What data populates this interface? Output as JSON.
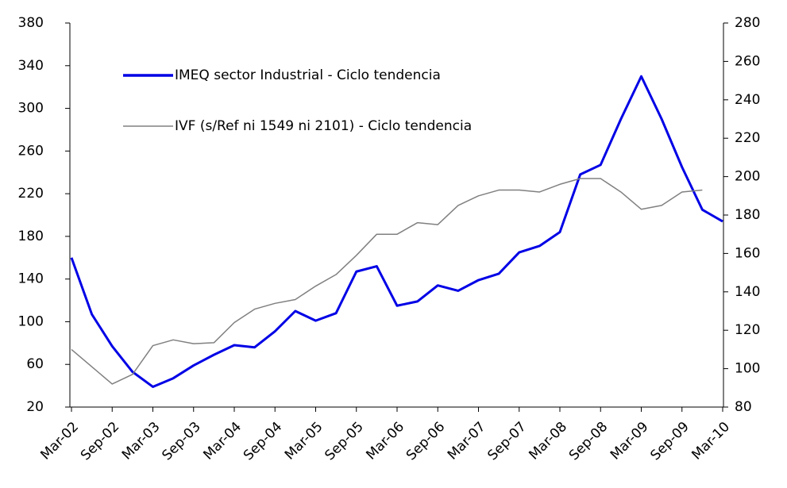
{
  "chart_data": {
    "type": "line",
    "categories": [
      "Mar-02",
      null,
      "Sep-02",
      null,
      "Mar-03",
      null,
      "Sep-03",
      null,
      "Mar-04",
      null,
      "Sep-04",
      null,
      "Mar-05",
      null,
      "Sep-05",
      null,
      "Mar-06",
      null,
      "Sep-06",
      null,
      "Mar-07",
      null,
      "Sep-07",
      null,
      "Mar-08",
      null,
      "Sep-08",
      null,
      "Mar-09",
      null,
      "Sep-09",
      null,
      "Mar-10"
    ],
    "series": [
      {
        "name": "IMEQ sector Industrial - Ciclo tendencia",
        "color": "#0000e6",
        "axis": "y",
        "values": [
          160,
          107,
          77,
          53,
          39,
          47,
          59,
          69,
          78,
          76,
          91,
          110,
          101,
          108,
          147,
          152,
          115,
          119,
          134,
          129,
          139,
          145,
          165,
          171,
          184,
          238,
          247,
          290,
          330,
          290,
          245,
          205,
          194
        ]
      },
      {
        "name": "IVF (s/Ref ni 1549 ni 2101) - Ciclo tendencia",
        "color": "#808080",
        "axis": "y2",
        "values": [
          110,
          101,
          92,
          97,
          112,
          115,
          113,
          113.5,
          124,
          131,
          134,
          136,
          143,
          149,
          159,
          170,
          170,
          176,
          175,
          185,
          190,
          193,
          193,
          192,
          196,
          199,
          199,
          192,
          183,
          185,
          192,
          193,
          null
        ]
      }
    ],
    "ylim": [
      20,
      380
    ],
    "yticks": [
      20,
      60,
      100,
      140,
      180,
      220,
      260,
      300,
      340,
      380
    ],
    "y2lim": [
      80,
      280
    ],
    "y2ticks": [
      80,
      100,
      120,
      140,
      160,
      180,
      200,
      220,
      240,
      260,
      280
    ]
  }
}
